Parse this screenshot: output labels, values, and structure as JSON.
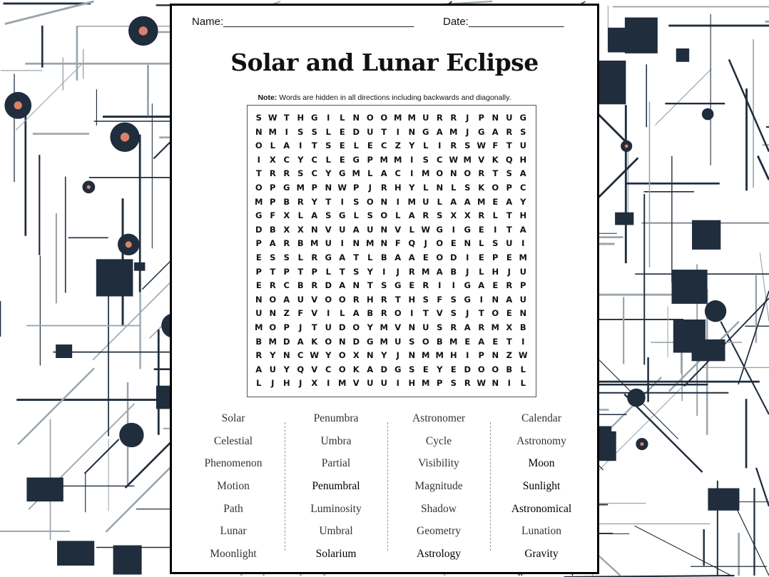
{
  "header": {
    "name_label": "Name:________________________________",
    "date_label": "Date:________________"
  },
  "title": "Solar and Lunar Eclipse",
  "note": {
    "bold": "Note:",
    "text": " Words are hidden in all directions including backwards and diagonally."
  },
  "grid": [
    "SWTHGILNOOMMURRJPNUG",
    "NMISSLEDUTINGAMJGARS",
    "OLAITSELECZYLIRSWFTU",
    "IXCYCLEGPMMISCWMVKQH",
    "TRRSCYGMLACIMONORTSA",
    "OPGMPNWPJRHYLNLSKOPC",
    "MPBRYTISONIMULAAMEAY",
    "GFXLASGLSOLARSXXRLTH",
    "DBXXNVUAUNVLWGIGEITA",
    "PARBMUINMNFQJOENLSUI",
    "ESSLRGATLBAAEODIEPEM",
    "PTPTPLTSYIJRMABJLHJU",
    "ERCBRDANTSGERIIGAERP",
    "NOAUVOORHRTHSFSGINAU",
    "UNZFVILABROITVSJTOEN",
    "MOPJTUDOYMVNUSRARMXB",
    "BMDAKONDGMUSOBMEAETI",
    "RYNCWYOXNYJNMMHIPNZW",
    "AUYQVCOKADGSEYEDOOBL",
    "LJHJXIMVUUIHMPSRWNIL"
  ],
  "word_columns": [
    [
      "Solar",
      "Celestial",
      "Phenomenon",
      "Motion",
      "Path",
      "Lunar",
      "Moonlight"
    ],
    [
      "Penumbra",
      "Umbra",
      "Partial",
      "Penumbral",
      "Luminosity",
      "Umbral",
      "Solarium"
    ],
    [
      "Astronomer",
      "Cycle",
      "Visibility",
      "Magnitude",
      "Shadow",
      "Geometry",
      "Astrology"
    ],
    [
      "Calendar",
      "Astronomy",
      "Moon",
      "Sunlight",
      "Astronomical",
      "Lunation",
      "Gravity"
    ]
  ],
  "colors": {
    "background_dark": "#1f2d3d",
    "background_accent": "#d9826a",
    "background_line": "#9aa5ad"
  }
}
